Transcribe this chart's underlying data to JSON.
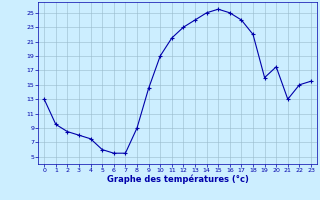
{
  "hours": [
    0,
    1,
    2,
    3,
    4,
    5,
    6,
    7,
    8,
    9,
    10,
    11,
    12,
    13,
    14,
    15,
    16,
    17,
    18,
    19,
    20,
    21,
    22,
    23
  ],
  "temps": [
    13,
    9.5,
    8.5,
    8.0,
    7.5,
    6.0,
    5.5,
    5.5,
    9.0,
    14.5,
    19.0,
    21.5,
    23.0,
    24.0,
    25.0,
    25.5,
    25.0,
    24.0,
    22.0,
    16.0,
    17.5,
    13.0,
    15.0,
    15.5
  ],
  "line_color": "#0000aa",
  "marker_color": "#0000aa",
  "bg_color": "#cceeff",
  "grid_color": "#99bbcc",
  "xlabel": "Graphe des températures (°c)",
  "xlabel_color": "#0000aa",
  "tick_color": "#0000aa",
  "spine_color": "#0000aa",
  "xlim": [
    -0.5,
    23.5
  ],
  "ylim": [
    4,
    26.5
  ],
  "yticks": [
    5,
    7,
    9,
    11,
    13,
    15,
    17,
    19,
    21,
    23,
    25
  ],
  "xticks": [
    0,
    1,
    2,
    3,
    4,
    5,
    6,
    7,
    8,
    9,
    10,
    11,
    12,
    13,
    14,
    15,
    16,
    17,
    18,
    19,
    20,
    21,
    22,
    23
  ],
  "figsize": [
    3.2,
    2.0
  ],
  "dpi": 100
}
